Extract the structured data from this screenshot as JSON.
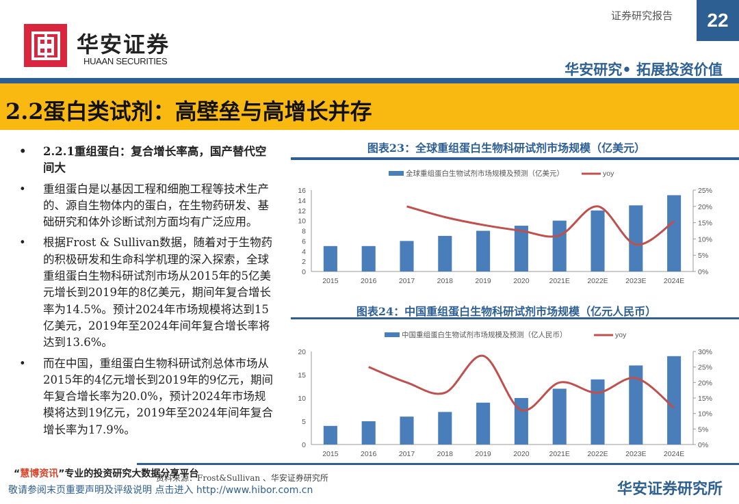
{
  "header": {
    "logo_cn": "华安证券",
    "logo_en": "HUAAN SECURITIES",
    "report_type": "证券研究报告",
    "page_number": "22",
    "tagline": "华安研究• 拓展投资价值"
  },
  "section_title": "2.2蛋白类试剂：高壁垒与高增长并存",
  "bullets": [
    {
      "text": "2.2.1重组蛋白：复合增长率高，国产替代空间大",
      "bold": true
    },
    {
      "text": "重组蛋白是以基因工程和细胞工程等技术生产的、源自生物体内的蛋白，在生物药研发、基础研究和体外诊断试剂方面均有广泛应用。"
    },
    {
      "text": "根据Frost & Sullivan数据，随着对于生物药的积极研发和生命科学机理的深入探索，全球重组蛋白生物科研试剂市场从2015年的5亿美元增长到2019年的8亿美元，期间年复合增长率为14.5%。预计2024年市场规模将达到15亿美元，2019年至2024年间年复合增长率将达到13.6%。"
    },
    {
      "text": "而在中国，重组蛋白生物科研试剂总体市场从2015年的4亿元增长到2019年的9亿元，期间年复合增长率为20.0%，预计2024年市场规模将达到19亿元，2019年至2024年间年复合增长率为17.9%。"
    }
  ],
  "colors": {
    "brand_blue": "#2d5f93",
    "accent_yellow": "#f9b911",
    "bar": "#4a7ebb",
    "line": "#c0504d",
    "logo_red": "#d7263d"
  },
  "chart_data": [
    {
      "type": "bar+line",
      "title": "图表23：全球重组蛋白生物科研试剂市场规模（亿美元）",
      "categories": [
        "2015",
        "2016",
        "2017",
        "2018",
        "2019",
        "2020",
        "2021E",
        "2022E",
        "2023E",
        "2024E"
      ],
      "series": [
        {
          "name": "全球重组蛋白生物试剂市场规模及预测（亿美元）",
          "type": "bar",
          "axis": "left",
          "values": [
            5,
            5,
            6,
            7,
            8,
            9,
            10,
            12,
            13,
            15
          ]
        },
        {
          "name": "yoy",
          "type": "line",
          "axis": "right",
          "values": [
            null,
            null,
            20.0,
            16.7,
            14.3,
            12.5,
            11.1,
            20.0,
            8.3,
            15.4
          ]
        }
      ],
      "ylim_left": [
        0,
        16
      ],
      "yticks_left": [
        "0",
        "2",
        "4",
        "6",
        "8",
        "10",
        "12",
        "14",
        "16"
      ],
      "ylim_right": [
        0,
        25
      ],
      "yticks_right": [
        "0%",
        "5%",
        "10%",
        "15%",
        "20%",
        "25%"
      ],
      "legend": "top"
    },
    {
      "type": "bar+line",
      "title": "图表24：中国重组蛋白生物科研试剂市场规模（亿元人民币）",
      "categories": [
        "2015",
        "2016",
        "2017",
        "2018",
        "2019",
        "2020",
        "2021E",
        "2022E",
        "2023E",
        "2024E"
      ],
      "series": [
        {
          "name": "中国重组蛋白生物试剂市场规模及预测（亿人民币）",
          "type": "bar",
          "axis": "left",
          "values": [
            4,
            5,
            6,
            7,
            9,
            10,
            12,
            14,
            17,
            19
          ]
        },
        {
          "name": "yoy",
          "type": "line",
          "axis": "right",
          "values": [
            null,
            25.0,
            20.0,
            16.7,
            28.6,
            11.1,
            20.0,
            16.7,
            21.4,
            11.8
          ]
        }
      ],
      "ylim_left": [
        0,
        20
      ],
      "yticks_left": [
        "0",
        "5",
        "10",
        "15",
        "20"
      ],
      "ylim_right": [
        0,
        30
      ],
      "yticks_right": [
        "0%",
        "5%",
        "10%",
        "15%",
        "20%",
        "25%",
        "30%"
      ],
      "legend": "top"
    }
  ],
  "source": "资料来源：Frost&Sullivan 、华安证券研究所",
  "footer": {
    "org": "华安证券研究所",
    "watermark_quote_open": "“",
    "watermark_brand": "慧博资讯",
    "watermark_rest": "”专业的投资研究大数据分享平台",
    "watermark_line2": "敬请参阅末页重要声明及评级说明  点击进入 http://www.hibor.com.cn"
  }
}
